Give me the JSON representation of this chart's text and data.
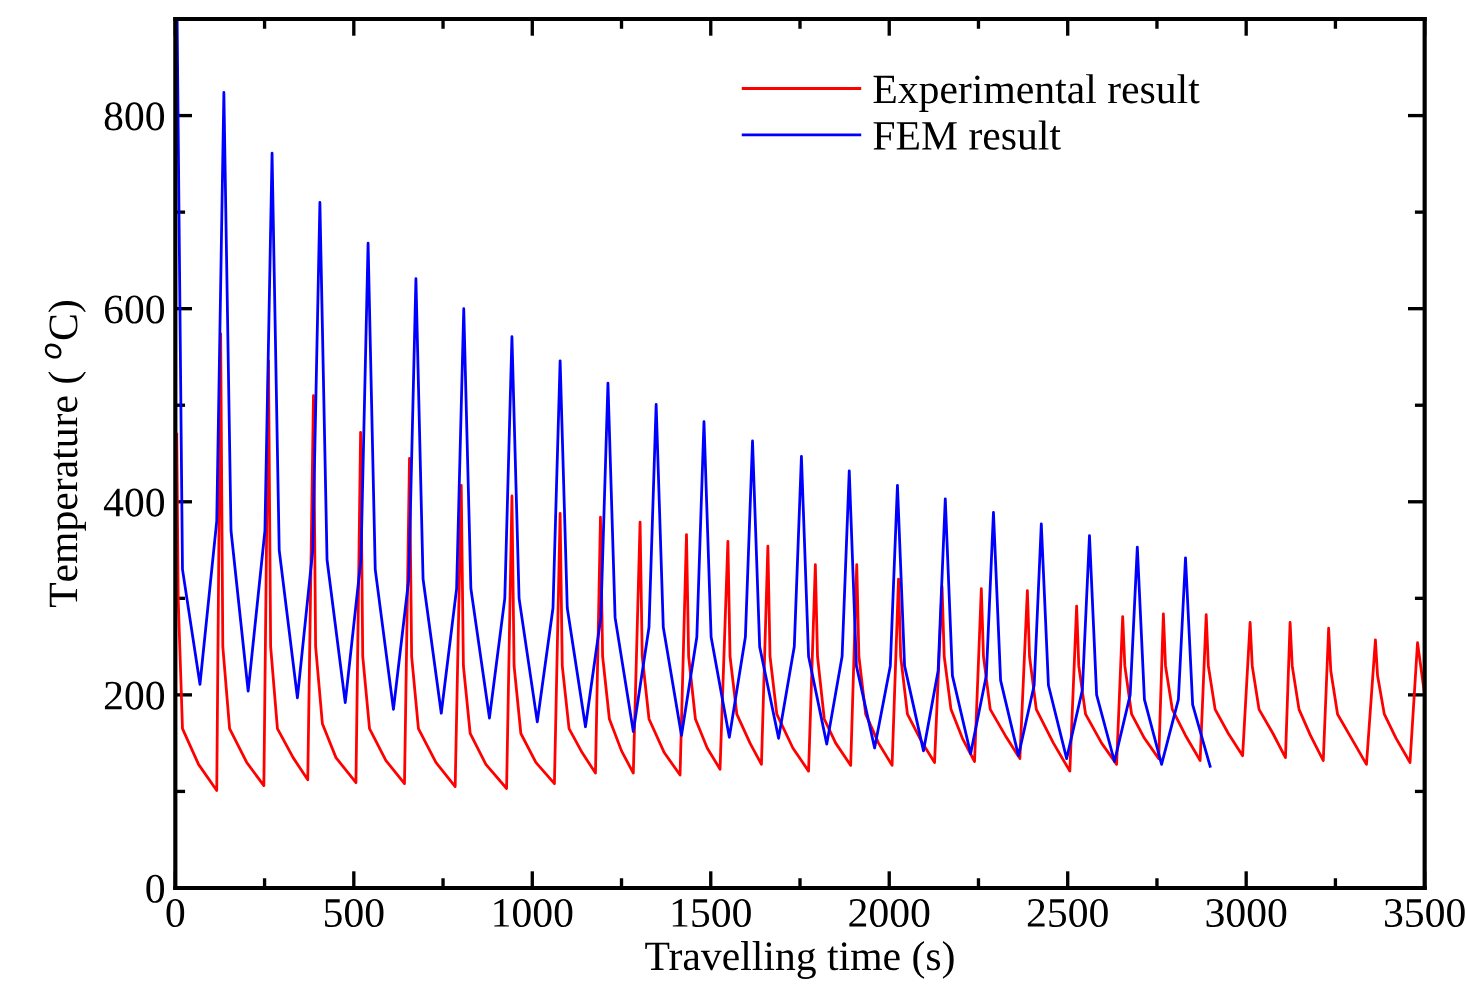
{
  "chart_data": {
    "type": "line",
    "xlabel": "Travelling time (s)",
    "ylabel": "Temperature ( $^{o}$C)",
    "xlim": [
      0,
      3500
    ],
    "ylim": [
      0,
      900
    ],
    "xticks": [
      0,
      {
        "value": 250,
        "label": null
      },
      500,
      {
        "value": 750,
        "label": null
      },
      1000,
      {
        "value": 1250,
        "label": null
      },
      1500,
      {
        "value": 1750,
        "label": null
      },
      2000,
      {
        "value": 2250,
        "label": null
      },
      2500,
      {
        "value": 2750,
        "label": null
      },
      3000,
      {
        "value": 3250,
        "label": null
      },
      3500
    ],
    "yticks": [
      0,
      {
        "value": 100,
        "label": null
      },
      200,
      {
        "value": 300,
        "label": null
      },
      400,
      {
        "value": 500,
        "label": null
      },
      600,
      {
        "value": 700,
        "label": null
      },
      800
    ],
    "legend": "top right",
    "grid": false,
    "marker": "none",
    "line_style": "solid",
    "series": [
      {
        "name": "Experimental result",
        "color": "#ff0000",
        "x": [
          4,
          8,
          20,
          65,
          116,
          127,
          133,
          152,
          200,
          248,
          261,
          267,
          286,
          330,
          371,
          387,
          393,
          412,
          450,
          506,
          519,
          525,
          544,
          590,
          642,
          656,
          662,
          681,
          730,
          784,
          801,
          807,
          826,
          870,
          928,
          943,
          949,
          968,
          1010,
          1062,
          1078,
          1084,
          1103,
          1140,
          1177,
          1191,
          1197,
          1216,
          1250,
          1283,
          1302,
          1308,
          1327,
          1370,
          1414,
          1432,
          1438,
          1457,
          1490,
          1526,
          1548,
          1554,
          1573,
          1610,
          1642,
          1660,
          1666,
          1685,
          1730,
          1774,
          1793,
          1799,
          1818,
          1850,
          1892,
          1909,
          1915,
          1934,
          1970,
          2008,
          2026,
          2032,
          2051,
          2090,
          2127,
          2148,
          2154,
          2173,
          2205,
          2239,
          2258,
          2264,
          2283,
          2325,
          2366,
          2387,
          2393,
          2412,
          2460,
          2506,
          2525,
          2531,
          2550,
          2595,
          2637,
          2654,
          2660,
          2679,
          2715,
          2755,
          2768,
          2774,
          2793,
          2830,
          2871,
          2888,
          2894,
          2913,
          2950,
          2990,
          3011,
          3017,
          3036,
          3075,
          3110,
          3123,
          3129,
          3148,
          3180,
          3216,
          3231,
          3237,
          3256,
          3295,
          3337,
          3362,
          3368,
          3387,
          3420,
          3459,
          3480,
          3500
        ],
        "values": [
          470,
          300,
          165,
          128,
          101,
          574,
          250,
          165,
          130,
          106,
          546,
          250,
          165,
          135,
          112,
          510,
          250,
          170,
          135,
          109,
          472,
          240,
          165,
          132,
          108,
          445,
          240,
          165,
          130,
          105,
          417,
          230,
          160,
          128,
          103,
          406,
          230,
          160,
          130,
          108,
          388,
          230,
          165,
          140,
          119,
          384,
          240,
          175,
          142,
          119,
          379,
          240,
          175,
          140,
          117,
          366,
          240,
          175,
          145,
          123,
          359,
          240,
          180,
          150,
          128,
          354,
          240,
          180,
          145,
          121,
          335,
          240,
          175,
          150,
          127,
          335,
          240,
          180,
          150,
          127,
          320,
          240,
          180,
          152,
          130,
          312,
          240,
          185,
          155,
          131,
          310,
          240,
          185,
          158,
          134,
          308,
          240,
          185,
          150,
          121,
          292,
          230,
          180,
          150,
          128,
          281,
          230,
          180,
          155,
          134,
          284,
          230,
          185,
          158,
          132,
          283,
          230,
          185,
          160,
          137,
          275,
          230,
          185,
          160,
          135,
          275,
          230,
          185,
          158,
          132,
          269,
          225,
          180,
          155,
          128,
          257,
          220,
          180,
          155,
          130,
          254,
          200
        ]
      },
      {
        "name": "FEM result",
        "color": "#0000ff",
        "x": [
          5,
          20,
          69,
          116,
          136,
          156,
          204,
          251,
          271,
          291,
          342,
          385,
          405,
          425,
          476,
          520,
          540,
          560,
          611,
          654,
          674,
          694,
          745,
          788,
          808,
          828,
          880,
          923,
          943,
          963,
          1014,
          1058,
          1078,
          1098,
          1149,
          1192,
          1212,
          1232,
          1283,
          1327,
          1347,
          1367,
          1418,
          1461,
          1481,
          1501,
          1552,
          1597,
          1617,
          1637,
          1690,
          1734,
          1754,
          1774,
          1825,
          1868,
          1888,
          1908,
          1959,
          2003,
          2023,
          2043,
          2096,
          2137,
          2157,
          2177,
          2228,
          2272,
          2292,
          2312,
          2362,
          2406,
          2426,
          2446,
          2497,
          2541,
          2561,
          2581,
          2631,
          2675,
          2695,
          2715,
          2763,
          2810,
          2830,
          2850,
          2899
        ],
        "values": [
          900,
          330,
          211,
          380,
          824,
          370,
          204,
          370,
          761,
          350,
          197,
          350,
          710,
          340,
          192,
          340,
          668,
          330,
          185,
          320,
          631,
          320,
          181,
          310,
          600,
          310,
          176,
          300,
          571,
          300,
          172,
          290,
          546,
          290,
          167,
          280,
          523,
          280,
          162,
          270,
          501,
          270,
          158,
          260,
          483,
          260,
          156,
          260,
          463,
          250,
          155,
          250,
          447,
          240,
          149,
          240,
          432,
          230,
          145,
          230,
          417,
          230,
          142,
          225,
          403,
          220,
          139,
          220,
          389,
          215,
          137,
          210,
          377,
          210,
          134,
          205,
          365,
          200,
          131,
          200,
          353,
          195,
          128,
          195,
          342,
          190,
          126
        ]
      }
    ]
  }
}
